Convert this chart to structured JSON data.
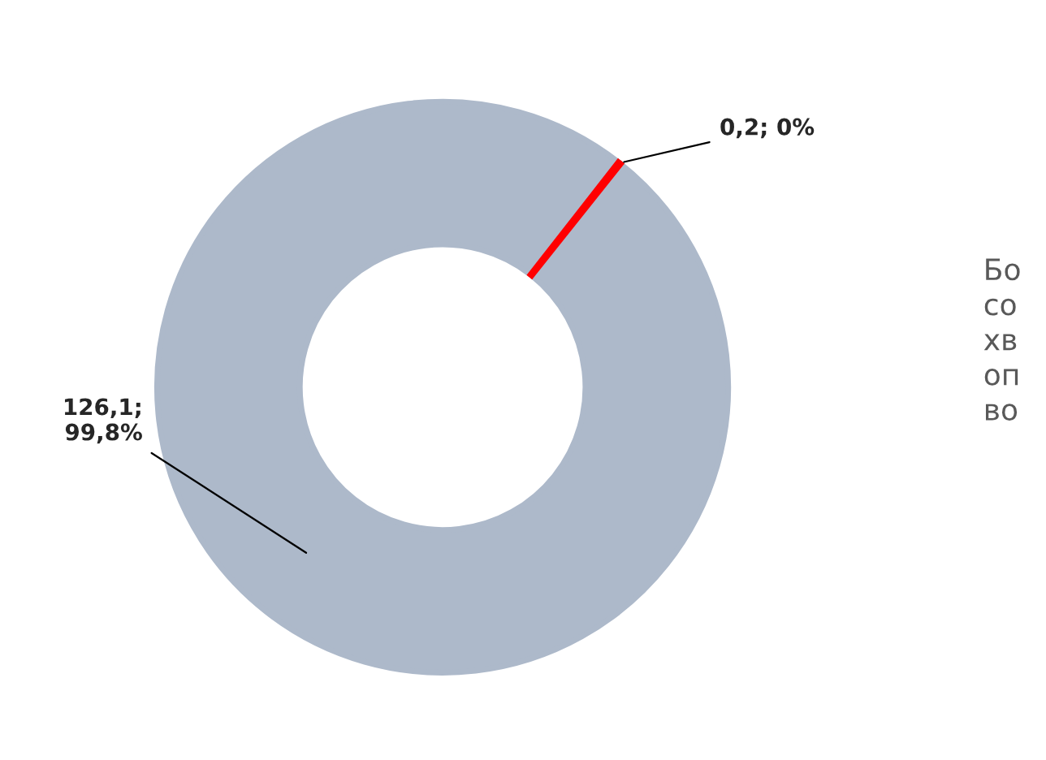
{
  "chart_data": {
    "type": "donut",
    "categories": [
      null,
      null
    ],
    "values": [
      0.2,
      126.1
    ],
    "colors": [
      "#ff0000",
      "#adb9ca"
    ],
    "value_labels": [
      "0,2; 0%",
      "126,1;\n99,8%"
    ],
    "annotations": [
      "Бо\nсо\nхв\nоп\nво"
    ]
  }
}
